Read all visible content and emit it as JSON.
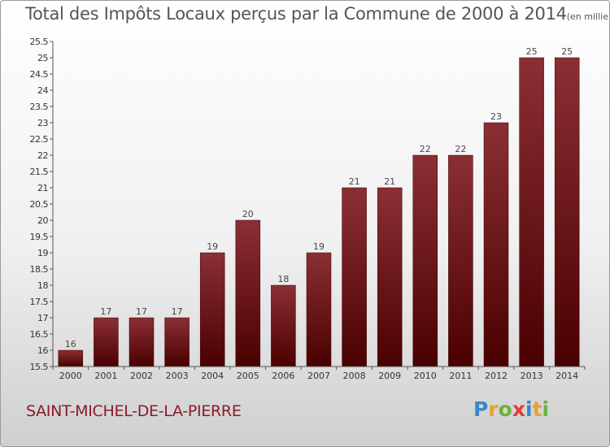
{
  "chart_data": {
    "type": "bar",
    "title": "Total des Impôts Locaux perçus par la Commune de 2000 à 2014",
    "subtitle": "(en milliers d'€)",
    "xlabel": "",
    "ylabel": "",
    "categories": [
      "2000",
      "2001",
      "2002",
      "2003",
      "2004",
      "2005",
      "2006",
      "2007",
      "2008",
      "2009",
      "2010",
      "2011",
      "2012",
      "2013",
      "2014"
    ],
    "values": [
      16,
      17,
      17,
      17,
      19,
      20,
      18,
      19,
      21,
      21,
      22,
      22,
      23,
      25,
      25
    ],
    "ylim": [
      15.5,
      25.5
    ],
    "yticks": [
      "15.5",
      "16",
      "16.5",
      "17",
      "17.5",
      "18",
      "18.5",
      "19",
      "19.5",
      "20",
      "20.5",
      "21",
      "21.5",
      "22",
      "22.5",
      "23",
      "23.5",
      "24",
      "24.5",
      "25",
      "25.5"
    ],
    "grid": false,
    "bar_color_top": "#8b2f35",
    "bar_color_bottom": "#4a0000"
  },
  "footer": {
    "commune": "SAINT-MICHEL-DE-LA-PIERRE",
    "logo_letters": [
      "P",
      "r",
      "o",
      "x",
      "i",
      "t",
      "i"
    ]
  },
  "colors": {
    "title": "#555555",
    "commune": "#8b1a2b",
    "axis": "#333333"
  }
}
